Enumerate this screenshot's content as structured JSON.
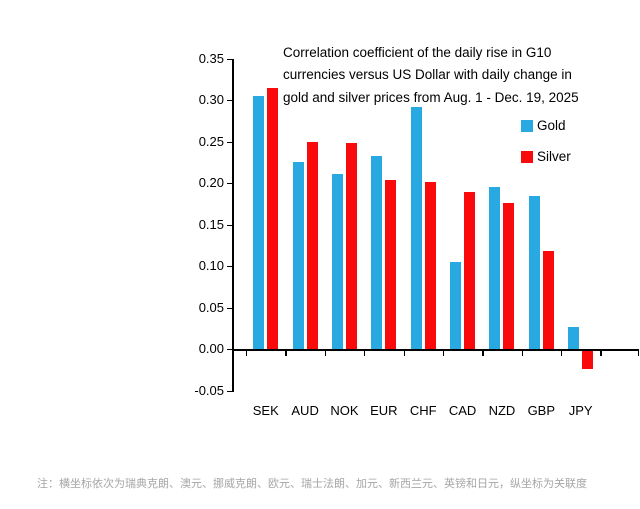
{
  "chart_data": {
    "type": "bar",
    "title": "Correlation coefficient of the daily rise in G10 currencies versus US Dollar with daily change in gold and silver prices from Aug. 1 - Dec. 19, 2025",
    "title_lines": [
      "Correlation coefficient of the daily rise in G10",
      "currencies versus US Dollar with daily change in",
      "gold and silver prices from Aug. 1 - Dec. 19, 2025"
    ],
    "categories": [
      "SEK",
      "AUD",
      "NOK",
      "EUR",
      "CHF",
      "CAD",
      "NZD",
      "GBP",
      "JPY"
    ],
    "series": [
      {
        "name": "Gold",
        "color": "#29A9E1",
        "values": [
          0.305,
          0.225,
          0.211,
          0.232,
          0.291,
          0.105,
          0.195,
          0.184,
          0.026
        ]
      },
      {
        "name": "Silver",
        "color": "#F90B0C",
        "values": [
          0.315,
          0.25,
          0.248,
          0.204,
          0.201,
          0.189,
          0.176,
          0.118,
          -0.022
        ]
      }
    ],
    "xlabel": "",
    "ylabel": "",
    "ylim": [
      -0.05,
      0.35
    ],
    "ytick_step": 0.05,
    "ytick_labels": [
      "0.35",
      "0.30",
      "0.25",
      "0.20",
      "0.15",
      "0.10",
      "0.05",
      "0.00",
      "-0.05"
    ],
    "legend": {
      "position": "upper-right",
      "entries": [
        "Gold",
        "Silver"
      ]
    },
    "grid": false,
    "axis_color": "#000000",
    "background": "#FFFFFF"
  },
  "footnote": "注：横坐标依次为瑞典克朗、澳元、挪威克朗、欧元、瑞士法朗、加元、新西兰元、英镑和日元，纵坐标为关联度"
}
